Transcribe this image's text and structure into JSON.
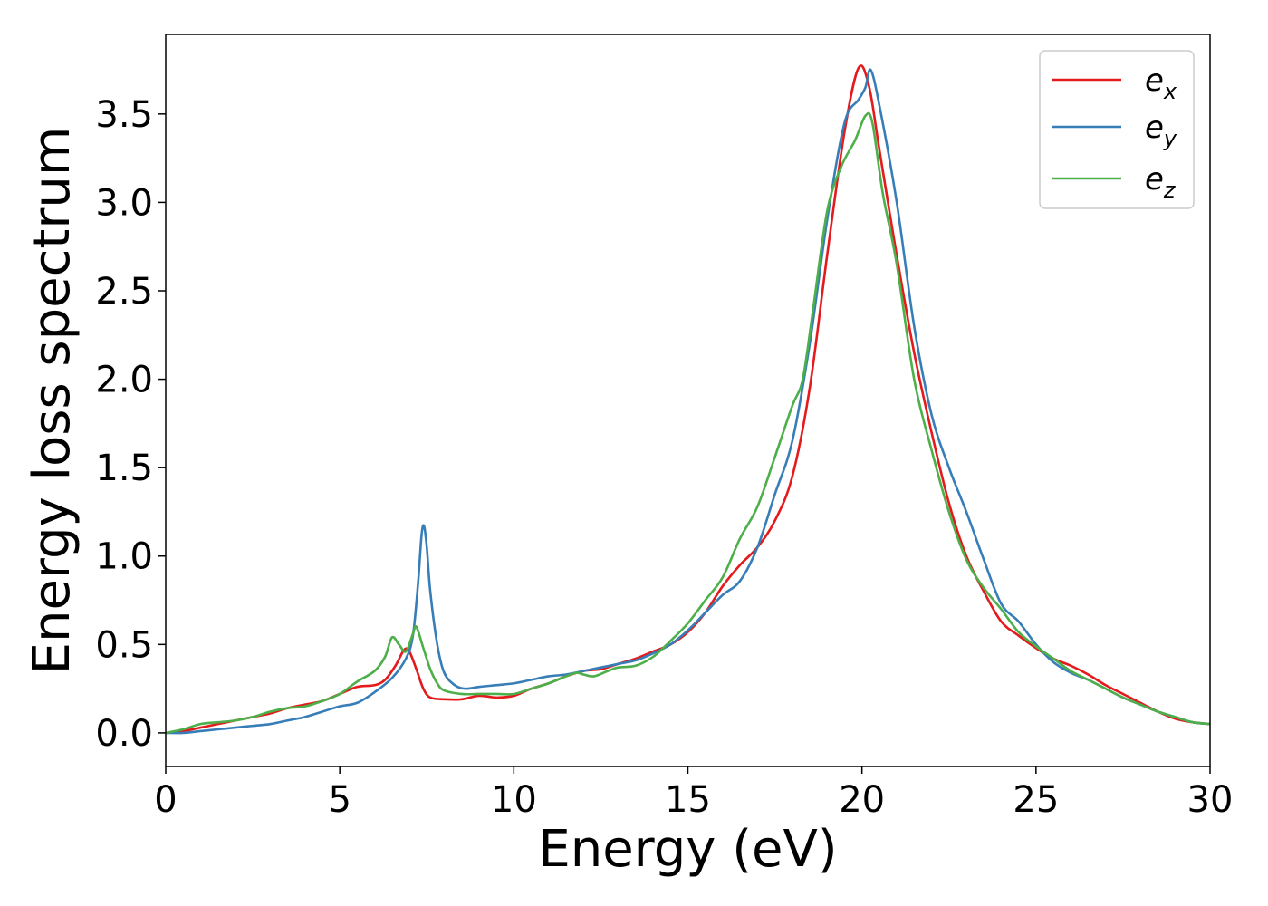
{
  "chart_data": {
    "type": "line",
    "title": "",
    "xlabel": "Energy (eV)",
    "ylabel": "Energy loss spectrum",
    "xlim": [
      0,
      30
    ],
    "ylim": [
      -0.19,
      3.95
    ],
    "xticks": [
      0,
      5,
      10,
      15,
      20,
      25,
      30
    ],
    "xtick_labels": [
      "0",
      "5",
      "10",
      "15",
      "20",
      "25",
      "30"
    ],
    "yticks": [
      0.0,
      0.5,
      1.0,
      1.5,
      2.0,
      2.5,
      3.0,
      3.5
    ],
    "ytick_labels": [
      "0.0",
      "0.5",
      "1.0",
      "1.5",
      "2.0",
      "2.5",
      "3.0",
      "3.5"
    ],
    "grid": false,
    "legend_position": "top-right",
    "series": [
      {
        "name": "e_x",
        "base": "e",
        "sub": "x",
        "color": "#e41a1c",
        "points": [
          [
            0,
            0
          ],
          [
            0.5,
            0.01
          ],
          [
            1,
            0.03
          ],
          [
            1.5,
            0.05
          ],
          [
            2,
            0.07
          ],
          [
            2.5,
            0.09
          ],
          [
            3,
            0.11
          ],
          [
            3.5,
            0.14
          ],
          [
            4,
            0.16
          ],
          [
            4.5,
            0.18
          ],
          [
            5,
            0.22
          ],
          [
            5.5,
            0.26
          ],
          [
            6,
            0.27
          ],
          [
            6.3,
            0.3
          ],
          [
            6.6,
            0.38
          ],
          [
            6.85,
            0.47
          ],
          [
            7.0,
            0.46
          ],
          [
            7.2,
            0.36
          ],
          [
            7.4,
            0.25
          ],
          [
            7.6,
            0.2
          ],
          [
            8,
            0.19
          ],
          [
            8.5,
            0.19
          ],
          [
            9,
            0.21
          ],
          [
            9.5,
            0.2
          ],
          [
            10,
            0.21
          ],
          [
            10.5,
            0.25
          ],
          [
            11,
            0.28
          ],
          [
            11.5,
            0.32
          ],
          [
            12,
            0.35
          ],
          [
            12.5,
            0.36
          ],
          [
            13,
            0.39
          ],
          [
            13.5,
            0.42
          ],
          [
            14,
            0.46
          ],
          [
            14.5,
            0.5
          ],
          [
            15,
            0.57
          ],
          [
            15.5,
            0.68
          ],
          [
            16,
            0.83
          ],
          [
            16.5,
            0.95
          ],
          [
            17,
            1.05
          ],
          [
            17.5,
            1.2
          ],
          [
            18,
            1.45
          ],
          [
            18.5,
            1.95
          ],
          [
            19,
            2.7
          ],
          [
            19.5,
            3.4
          ],
          [
            19.9,
            3.76
          ],
          [
            20.2,
            3.66
          ],
          [
            20.5,
            3.3
          ],
          [
            21,
            2.7
          ],
          [
            21.5,
            2.15
          ],
          [
            22,
            1.7
          ],
          [
            22.5,
            1.3
          ],
          [
            23,
            1.0
          ],
          [
            23.5,
            0.8
          ],
          [
            24,
            0.63
          ],
          [
            24.5,
            0.55
          ],
          [
            25,
            0.48
          ],
          [
            25.5,
            0.42
          ],
          [
            26,
            0.38
          ],
          [
            26.5,
            0.33
          ],
          [
            27,
            0.27
          ],
          [
            27.5,
            0.22
          ],
          [
            28,
            0.17
          ],
          [
            28.5,
            0.12
          ],
          [
            29,
            0.08
          ],
          [
            29.5,
            0.06
          ],
          [
            30,
            0.05
          ]
        ]
      },
      {
        "name": "e_y",
        "base": "e",
        "sub": "y",
        "color": "#377eb8",
        "points": [
          [
            0,
            0
          ],
          [
            0.5,
            0.0
          ],
          [
            1,
            0.01
          ],
          [
            1.5,
            0.02
          ],
          [
            2,
            0.03
          ],
          [
            2.5,
            0.04
          ],
          [
            3,
            0.05
          ],
          [
            3.5,
            0.07
          ],
          [
            4,
            0.09
          ],
          [
            4.5,
            0.12
          ],
          [
            5,
            0.15
          ],
          [
            5.5,
            0.17
          ],
          [
            6,
            0.23
          ],
          [
            6.5,
            0.31
          ],
          [
            6.9,
            0.42
          ],
          [
            7.1,
            0.55
          ],
          [
            7.25,
            0.85
          ],
          [
            7.35,
            1.12
          ],
          [
            7.42,
            1.17
          ],
          [
            7.5,
            1.05
          ],
          [
            7.6,
            0.8
          ],
          [
            7.8,
            0.5
          ],
          [
            8,
            0.34
          ],
          [
            8.3,
            0.27
          ],
          [
            8.6,
            0.25
          ],
          [
            9,
            0.26
          ],
          [
            9.5,
            0.27
          ],
          [
            10,
            0.28
          ],
          [
            10.5,
            0.3
          ],
          [
            11,
            0.32
          ],
          [
            11.5,
            0.33
          ],
          [
            12,
            0.35
          ],
          [
            12.5,
            0.37
          ],
          [
            13,
            0.39
          ],
          [
            13.5,
            0.41
          ],
          [
            14,
            0.45
          ],
          [
            14.5,
            0.5
          ],
          [
            15,
            0.58
          ],
          [
            15.5,
            0.68
          ],
          [
            16,
            0.78
          ],
          [
            16.5,
            0.86
          ],
          [
            17,
            1.05
          ],
          [
            17.5,
            1.35
          ],
          [
            18,
            1.65
          ],
          [
            18.5,
            2.2
          ],
          [
            19,
            2.9
          ],
          [
            19.5,
            3.45
          ],
          [
            19.9,
            3.58
          ],
          [
            20.1,
            3.65
          ],
          [
            20.25,
            3.75
          ],
          [
            20.5,
            3.55
          ],
          [
            21,
            3.0
          ],
          [
            21.5,
            2.3
          ],
          [
            22,
            1.8
          ],
          [
            22.5,
            1.5
          ],
          [
            23,
            1.25
          ],
          [
            23.5,
            0.98
          ],
          [
            24,
            0.73
          ],
          [
            24.5,
            0.63
          ],
          [
            25,
            0.5
          ],
          [
            25.5,
            0.4
          ],
          [
            26,
            0.34
          ],
          [
            26.5,
            0.3
          ],
          [
            27,
            0.25
          ],
          [
            27.5,
            0.2
          ],
          [
            28,
            0.16
          ],
          [
            28.5,
            0.12
          ],
          [
            29,
            0.09
          ],
          [
            29.5,
            0.06
          ],
          [
            30,
            0.05
          ]
        ]
      },
      {
        "name": "e_z",
        "base": "e",
        "sub": "z",
        "color": "#4daf4a",
        "points": [
          [
            0,
            0
          ],
          [
            0.5,
            0.02
          ],
          [
            1,
            0.05
          ],
          [
            1.5,
            0.06
          ],
          [
            2,
            0.07
          ],
          [
            2.5,
            0.09
          ],
          [
            3,
            0.12
          ],
          [
            3.5,
            0.14
          ],
          [
            4,
            0.15
          ],
          [
            4.5,
            0.18
          ],
          [
            5,
            0.22
          ],
          [
            5.5,
            0.29
          ],
          [
            6,
            0.35
          ],
          [
            6.3,
            0.43
          ],
          [
            6.5,
            0.54
          ],
          [
            6.7,
            0.5
          ],
          [
            6.9,
            0.46
          ],
          [
            7.1,
            0.56
          ],
          [
            7.2,
            0.6
          ],
          [
            7.4,
            0.48
          ],
          [
            7.6,
            0.36
          ],
          [
            7.8,
            0.28
          ],
          [
            8,
            0.24
          ],
          [
            8.5,
            0.22
          ],
          [
            9,
            0.22
          ],
          [
            9.5,
            0.22
          ],
          [
            10,
            0.22
          ],
          [
            10.5,
            0.25
          ],
          [
            11,
            0.28
          ],
          [
            11.5,
            0.32
          ],
          [
            11.8,
            0.34
          ],
          [
            12,
            0.33
          ],
          [
            12.3,
            0.32
          ],
          [
            12.7,
            0.35
          ],
          [
            13,
            0.37
          ],
          [
            13.5,
            0.38
          ],
          [
            14,
            0.43
          ],
          [
            14.5,
            0.52
          ],
          [
            15,
            0.62
          ],
          [
            15.5,
            0.75
          ],
          [
            16,
            0.88
          ],
          [
            16.5,
            1.1
          ],
          [
            17,
            1.28
          ],
          [
            17.5,
            1.56
          ],
          [
            18,
            1.85
          ],
          [
            18.3,
            2.0
          ],
          [
            18.6,
            2.4
          ],
          [
            19,
            2.95
          ],
          [
            19.4,
            3.2
          ],
          [
            19.8,
            3.35
          ],
          [
            20.1,
            3.49
          ],
          [
            20.3,
            3.45
          ],
          [
            20.6,
            3.05
          ],
          [
            21,
            2.65
          ],
          [
            21.5,
            2.0
          ],
          [
            22,
            1.6
          ],
          [
            22.5,
            1.25
          ],
          [
            23,
            0.98
          ],
          [
            23.5,
            0.82
          ],
          [
            24,
            0.7
          ],
          [
            24.5,
            0.57
          ],
          [
            25,
            0.49
          ],
          [
            25.5,
            0.42
          ],
          [
            26,
            0.35
          ],
          [
            26.5,
            0.3
          ],
          [
            27,
            0.25
          ],
          [
            27.5,
            0.2
          ],
          [
            28,
            0.16
          ],
          [
            28.5,
            0.12
          ],
          [
            29,
            0.09
          ],
          [
            29.5,
            0.06
          ],
          [
            30,
            0.05
          ]
        ]
      }
    ]
  }
}
